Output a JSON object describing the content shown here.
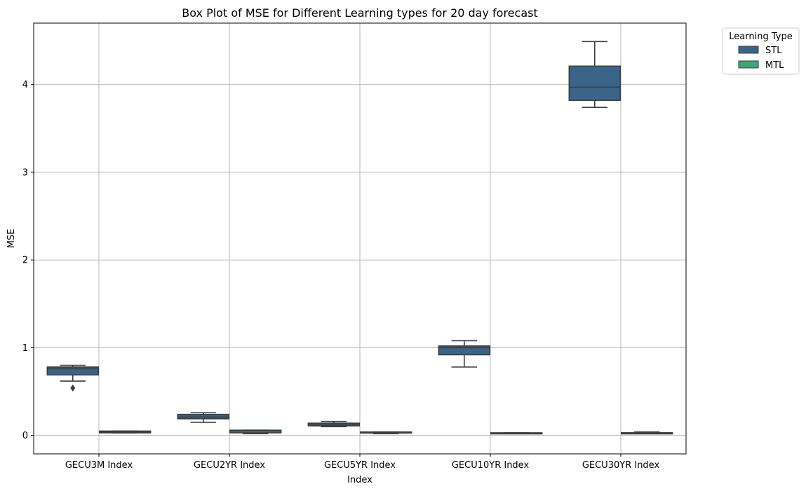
{
  "chart_data": {
    "type": "box",
    "title": "Box Plot of MSE for Different Learning types for 20 day forecast",
    "xlabel": "Index",
    "ylabel": "MSE",
    "categories": [
      "GECU3M Index",
      "GECU2YR Index",
      "GECU5YR Index",
      "GECU10YR Index",
      "GECU30YR Index"
    ],
    "yticks": [
      0,
      1,
      2,
      3,
      4
    ],
    "ylim": [
      -0.21,
      4.7
    ],
    "grid": true,
    "legend": {
      "title": "Learning Type",
      "placement": "upper-right-outside"
    },
    "series": [
      {
        "name": "STL",
        "color": "#3b6488",
        "boxes": [
          {
            "whisker_low": 0.62,
            "q1": 0.69,
            "median": 0.76,
            "q3": 0.78,
            "whisker_high": 0.8,
            "outliers": [
              0.54
            ]
          },
          {
            "whisker_low": 0.15,
            "q1": 0.19,
            "median": 0.21,
            "q3": 0.24,
            "whisker_high": 0.26,
            "outliers": []
          },
          {
            "whisker_low": 0.1,
            "q1": 0.11,
            "median": 0.12,
            "q3": 0.14,
            "whisker_high": 0.16,
            "outliers": []
          },
          {
            "whisker_low": 0.78,
            "q1": 0.92,
            "median": 1.0,
            "q3": 1.02,
            "whisker_high": 1.08,
            "outliers": []
          },
          {
            "whisker_low": 3.74,
            "q1": 3.82,
            "median": 3.97,
            "q3": 4.21,
            "whisker_high": 4.49,
            "outliers": []
          }
        ]
      },
      {
        "name": "MTL",
        "color": "#3ba774",
        "boxes": [
          {
            "whisker_low": 0.03,
            "q1": 0.03,
            "median": 0.04,
            "q3": 0.05,
            "whisker_high": 0.05,
            "outliers": []
          },
          {
            "whisker_low": 0.02,
            "q1": 0.03,
            "median": 0.05,
            "q3": 0.06,
            "whisker_high": 0.06,
            "outliers": []
          },
          {
            "whisker_low": 0.02,
            "q1": 0.03,
            "median": 0.03,
            "q3": 0.04,
            "whisker_high": 0.04,
            "outliers": []
          },
          {
            "whisker_low": 0.02,
            "q1": 0.02,
            "median": 0.02,
            "q3": 0.03,
            "whisker_high": 0.03,
            "outliers": []
          },
          {
            "whisker_low": 0.02,
            "q1": 0.03,
            "median": 0.03,
            "q3": 0.03,
            "whisker_high": 0.04,
            "outliers": []
          }
        ]
      }
    ]
  }
}
